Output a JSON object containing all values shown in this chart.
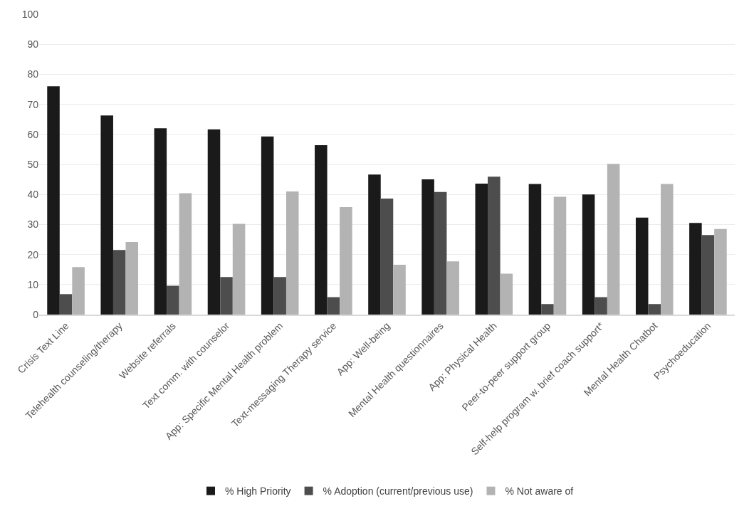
{
  "chart_data": {
    "type": "bar",
    "categories": [
      "Crisis Text Line",
      "Telehealth counseling/therapy",
      "Website referrals",
      "Text comm. with counselor",
      "App: Specific Mental Health problem",
      "Text-messaging Therapy service",
      "App: Well-being",
      "Mental Health questionnaires",
      "App: Physical Health",
      "Peer-to-peer support group",
      "Self-help program w. brief coach support*",
      "Mental Health Chatbot",
      "Psychoeducation"
    ],
    "series": [
      {
        "name": "% High Priority",
        "color": "#1a1a1a",
        "values": [
          76,
          66.3,
          62,
          61.7,
          59.3,
          56.4,
          46.6,
          45,
          43.6,
          43.5,
          40,
          32.3,
          30.5
        ]
      },
      {
        "name": "% Adoption (current/previous use)",
        "color": "#4d4d4d",
        "values": [
          6.8,
          21.5,
          9.6,
          12.5,
          12.5,
          5.8,
          38.6,
          40.8,
          45.9,
          3.5,
          5.8,
          3.5,
          26.5
        ]
      },
      {
        "name": "% Not aware of",
        "color": "#b3b3b3",
        "values": [
          15.8,
          24.2,
          40.4,
          30.2,
          41,
          35.8,
          16.6,
          17.7,
          13.6,
          39.2,
          50.2,
          43.5,
          28.5
        ]
      }
    ],
    "ylim": [
      0,
      100
    ],
    "yticks": [
      0,
      10,
      20,
      30,
      40,
      50,
      60,
      70,
      80,
      90,
      100
    ],
    "grid": "y",
    "legend": "bottom"
  }
}
